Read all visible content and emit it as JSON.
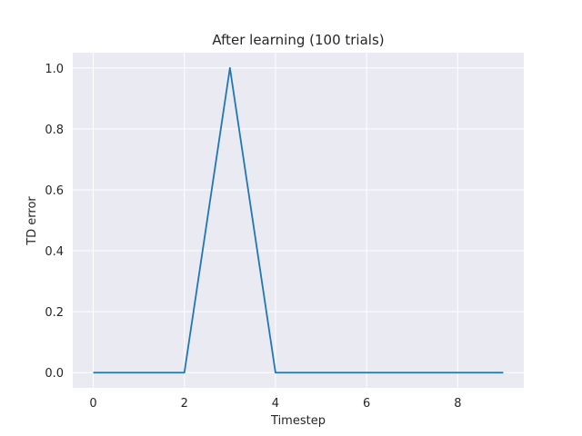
{
  "chart_data": {
    "type": "line",
    "title": "After learning (100 trials)",
    "xlabel": "Timestep",
    "ylabel": "TD error",
    "xlim": [
      -0.45,
      9.45
    ],
    "ylim": [
      -0.05,
      1.05
    ],
    "xticks": [
      0,
      2,
      4,
      6,
      8
    ],
    "yticks": [
      0.0,
      0.2,
      0.4,
      0.6,
      0.8,
      1.0
    ],
    "xtick_labels": [
      "0",
      "2",
      "4",
      "6",
      "8"
    ],
    "ytick_labels": [
      "0.0",
      "0.2",
      "0.4",
      "0.6",
      "0.8",
      "1.0"
    ],
    "grid": true,
    "background_color": "#eaeaf2",
    "grid_color": "#ffffff",
    "series": [
      {
        "color": "#1f77b4",
        "x": [
          0,
          1,
          2,
          3,
          4,
          5,
          6,
          7,
          8,
          9
        ],
        "y": [
          0.0,
          0.0,
          0.0,
          1.0,
          0.0,
          0.0,
          0.0,
          0.0,
          0.0,
          0.0
        ]
      }
    ]
  }
}
